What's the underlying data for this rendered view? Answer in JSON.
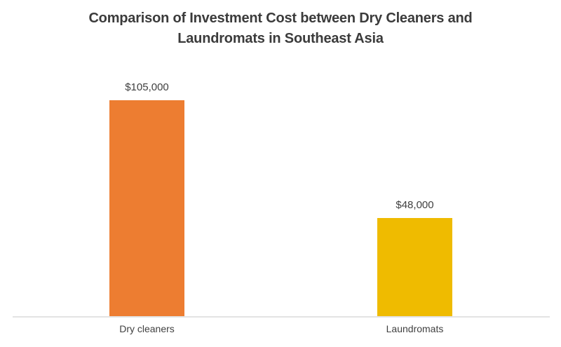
{
  "chart_data": {
    "type": "bar",
    "title": "Comparison of Investment Cost between Dry Cleaners and Laundromats in Southeast Asia",
    "title_lines": [
      "Comparison of Investment Cost between Dry Cleaners and",
      "Laundromats in Southeast Asia"
    ],
    "categories": [
      "Dry cleaners",
      "Laundromats"
    ],
    "values": [
      105000,
      48000
    ],
    "value_labels": [
      "$105,000",
      "$48,000"
    ],
    "bar_colors": [
      "#ED7D31",
      "#EFBB00"
    ],
    "xlabel": "",
    "ylabel": "",
    "ylim": [
      0,
      110000
    ],
    "grid": false,
    "legend": false,
    "title_color": "#3B3B3B",
    "text_color": "#404040",
    "axis_line_color": "#E3E3E3",
    "background_color": "#FFFFFF"
  }
}
